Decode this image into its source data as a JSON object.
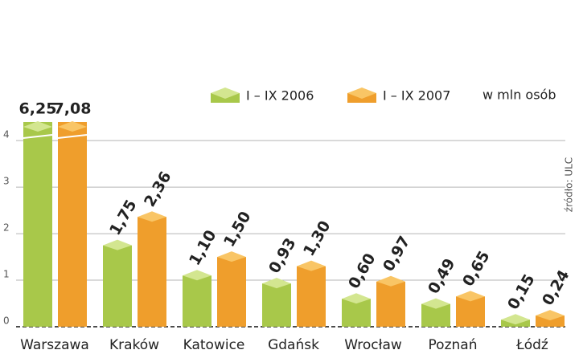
{
  "chart_data": {
    "type": "bar",
    "unit": "w mln osób",
    "source": "źródło: ULC",
    "categories": [
      "Warszawa",
      "Kraków",
      "Katowice",
      "Gdańsk",
      "Wrocław",
      "Poznań",
      "Łódź"
    ],
    "series": [
      {
        "name": "I – IX 2006",
        "color": "#a8c84a",
        "top_color": "#d3e690",
        "values": [
          6.25,
          1.75,
          1.1,
          0.93,
          0.6,
          0.49,
          0.15
        ],
        "value_labels": [
          "6,25",
          "1,75",
          "1,10",
          "0,93",
          "0,60",
          "0,49",
          "0,15"
        ]
      },
      {
        "name": "I – IX 2007",
        "color": "#ef9e2c",
        "top_color": "#f9c565",
        "values": [
          7.08,
          2.36,
          1.5,
          1.3,
          0.97,
          0.65,
          0.24
        ],
        "value_labels": [
          "7,08",
          "2,36",
          "1,50",
          "1,30",
          "0,97",
          "0,65",
          "0,24"
        ]
      }
    ],
    "ylim": [
      0,
      4.4
    ],
    "yticks": [
      0,
      1,
      2,
      3,
      4
    ],
    "grid": true
  }
}
